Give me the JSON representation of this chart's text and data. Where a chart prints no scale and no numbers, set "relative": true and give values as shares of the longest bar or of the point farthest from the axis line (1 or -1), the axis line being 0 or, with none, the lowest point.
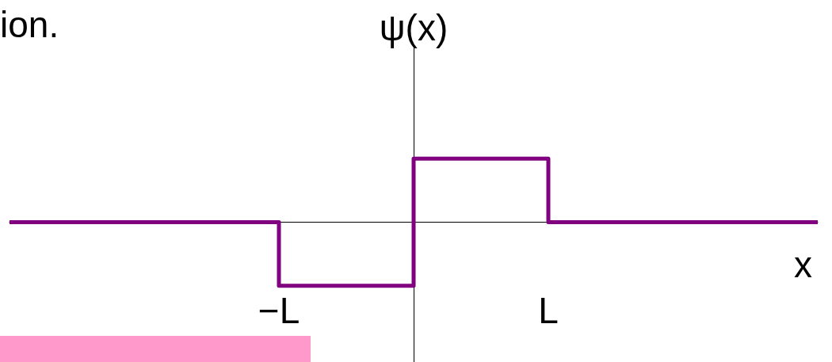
{
  "chart_data": {
    "type": "step",
    "relative": true,
    "categories": [
      null,
      null,
      "−L",
      null,
      "L",
      null,
      null
    ],
    "series": [
      {
        "color": "#800080",
        "values": [
          0,
          0,
          -1,
          1,
          0,
          0,
          0
        ]
      }
    ],
    "xlabel": "x",
    "ylabel": "ψ(x)",
    "annotations": [
      "ion."
    ],
    "marker": "none",
    "line_style": "solid"
  }
}
